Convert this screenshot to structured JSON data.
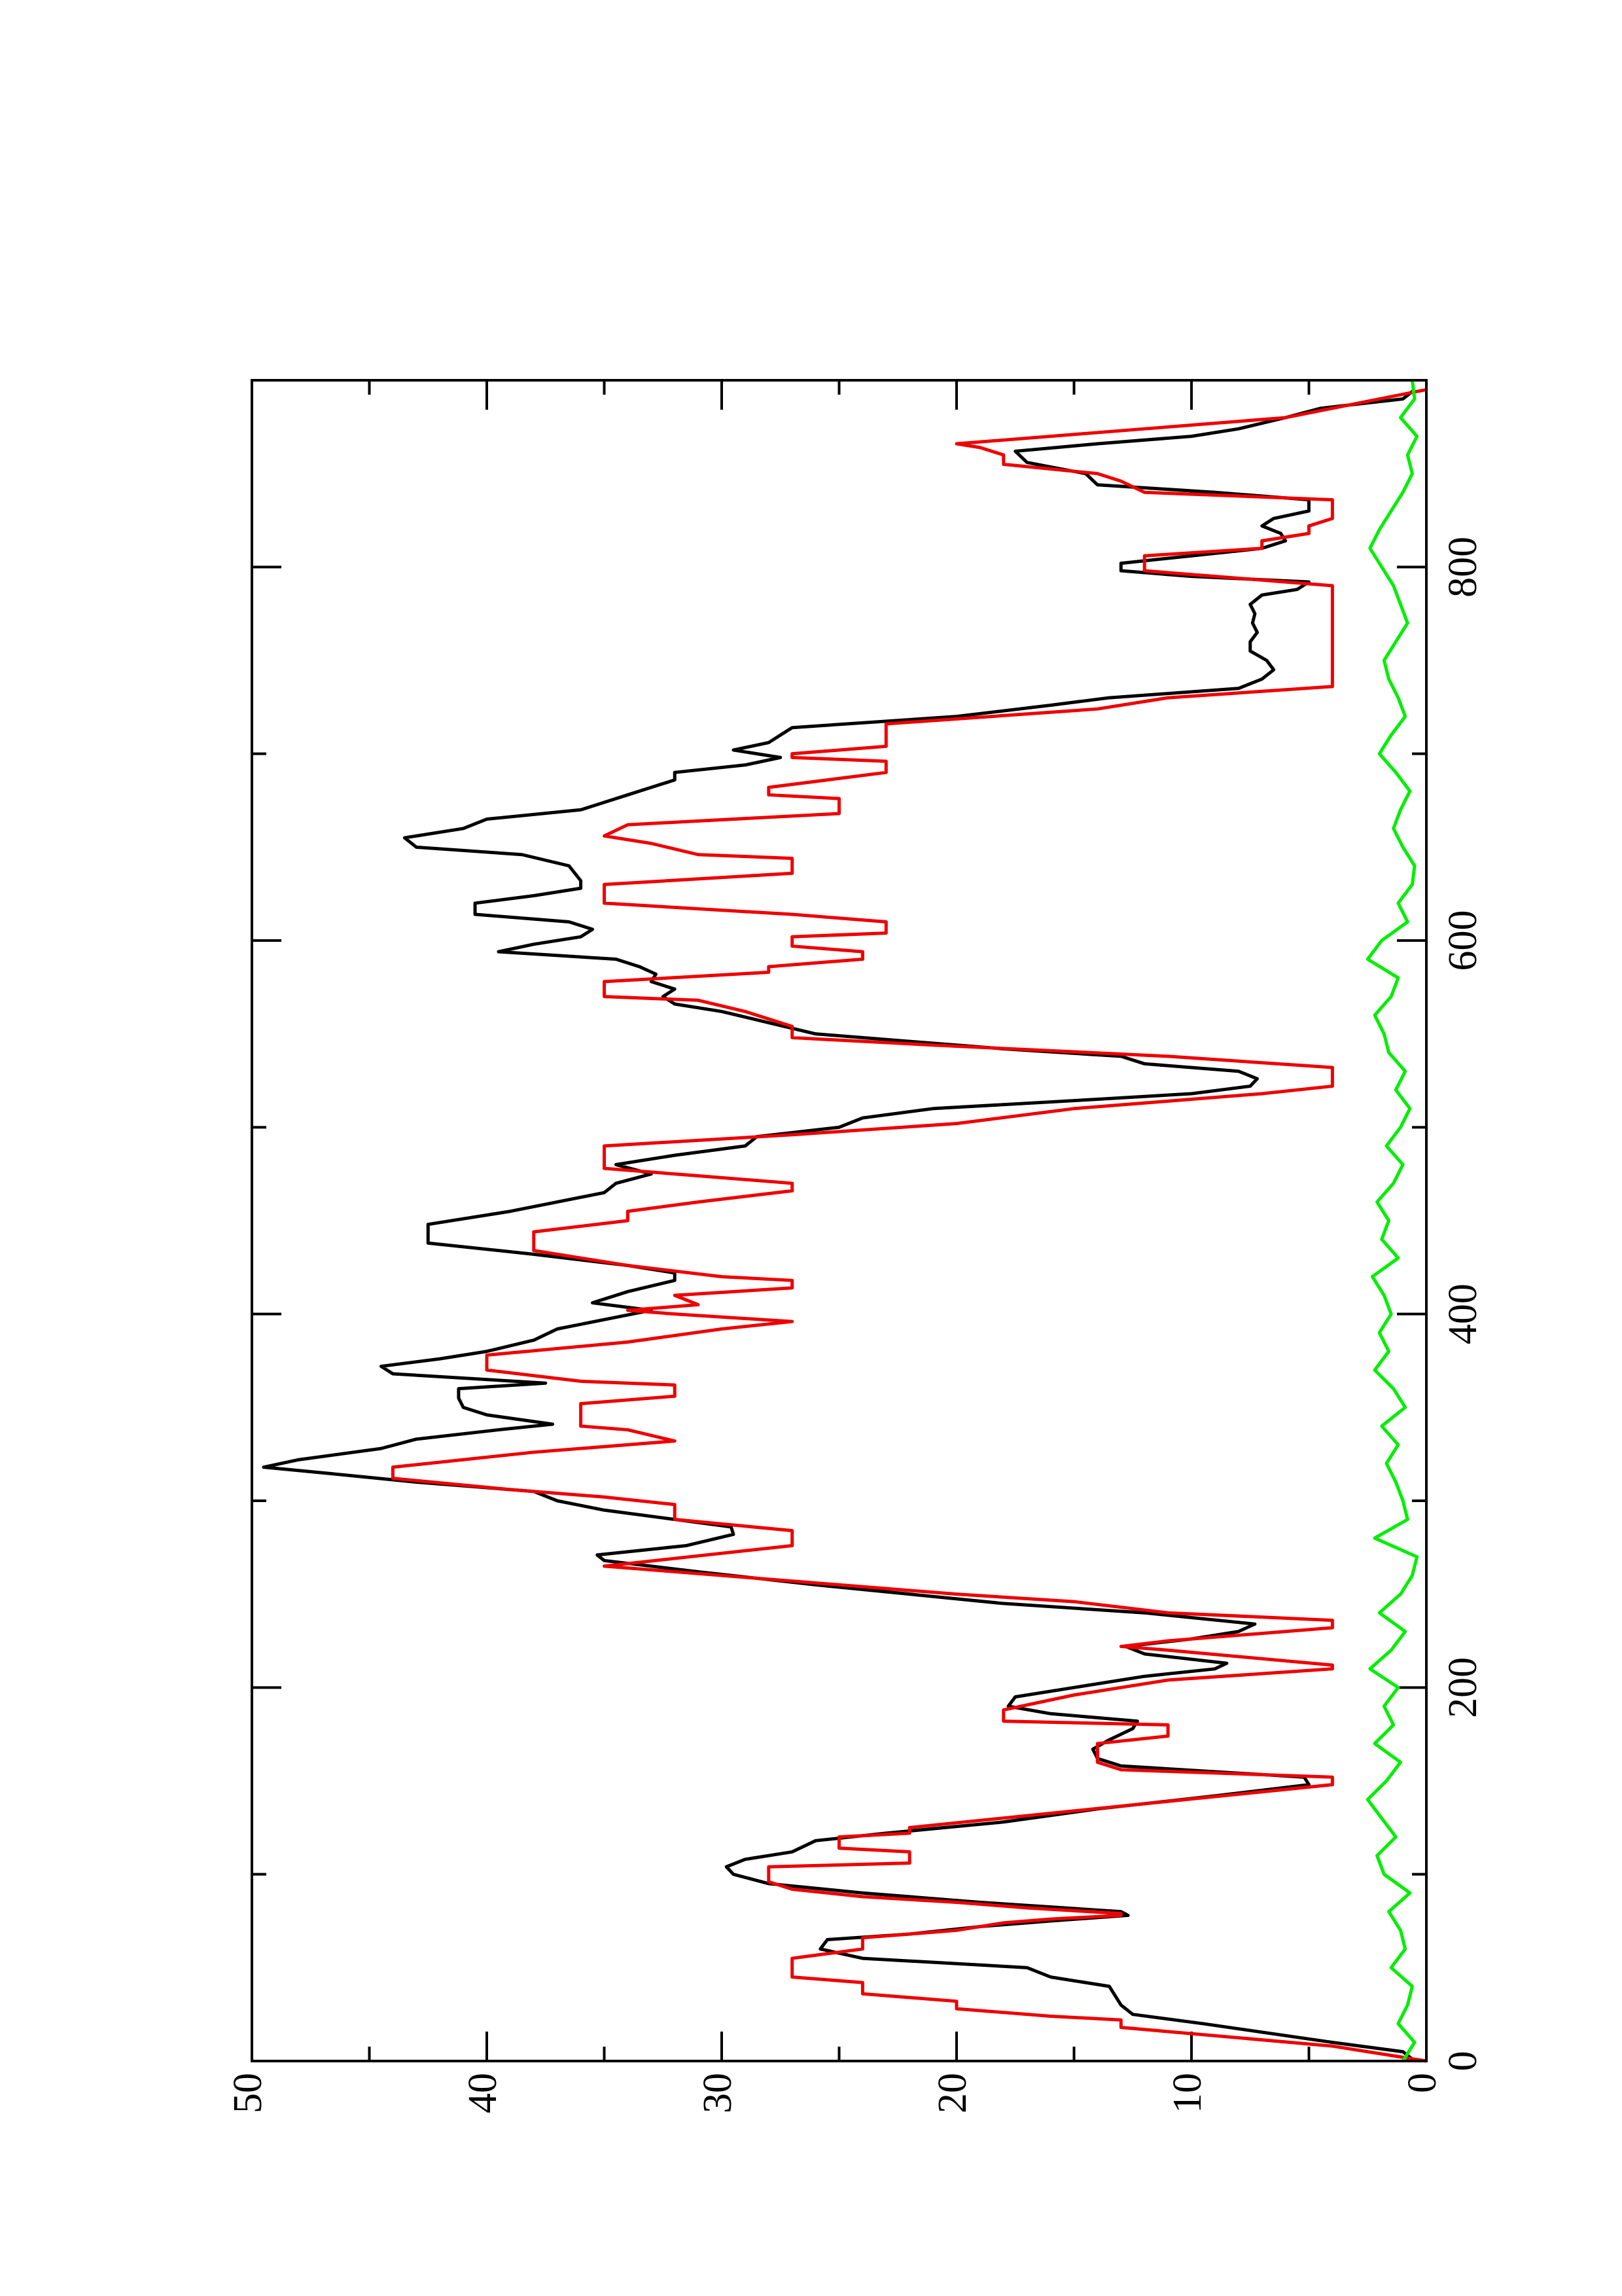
{
  "chart_data": {
    "type": "line",
    "xlim": [
      0,
      900
    ],
    "ylim": [
      0,
      50
    ],
    "xticks": [
      0,
      200,
      400,
      600,
      800
    ],
    "xminorticks": [
      100,
      300,
      500,
      700
    ],
    "yticks": [
      0,
      10,
      20,
      30,
      40,
      50
    ],
    "yminorticks": [
      5,
      15,
      25,
      35,
      45
    ],
    "series": [
      {
        "color": "#000000",
        "x": [
          0,
          5,
          10,
          20,
          25,
          30,
          40,
          45,
          50,
          55,
          60,
          65,
          68,
          72,
          75,
          78,
          80,
          85,
          90,
          95,
          100,
          104,
          108,
          112,
          118,
          122,
          128,
          135,
          142,
          148,
          152,
          158,
          162,
          167,
          172,
          178,
          182,
          186,
          190,
          195,
          200,
          206,
          210,
          213,
          218,
          222,
          226,
          230,
          234,
          240,
          245,
          250,
          255,
          262,
          268,
          271,
          276,
          282,
          286,
          290,
          295,
          300,
          305,
          310,
          315,
          318,
          322,
          328,
          333,
          338,
          341,
          346,
          350,
          355,
          360,
          363,
          368,
          372,
          376,
          380,
          386,
          392,
          397,
          402,
          406,
          412,
          418,
          422,
          426,
          432,
          438,
          448,
          455,
          460,
          465,
          470,
          475,
          480,
          485,
          490,
          495,
          500,
          505,
          510,
          515,
          518,
          522,
          526,
          530,
          534,
          538,
          542,
          546,
          550,
          556,
          562,
          566,
          570,
          574,
          578,
          582,
          586,
          590,
          594,
          598,
          602,
          606,
          610,
          614,
          620,
          624,
          628,
          632,
          640,
          646,
          650,
          655,
          660,
          665,
          670,
          674,
          678,
          682,
          686,
          690,
          694,
          698,
          702,
          706,
          710,
          714,
          720,
          726,
          730,
          735,
          740,
          745,
          750,
          755,
          760,
          765,
          770,
          775,
          780,
          785,
          788,
          792,
          795,
          798,
          802,
          806,
          810,
          814,
          818,
          822,
          826,
          830,
          836,
          840,
          844,
          850,
          856,
          862,
          866,
          870,
          874,
          880,
          885,
          890,
          895
        ],
        "values": [
          0.5,
          1,
          4,
          9.5,
          12.5,
          13,
          13.5,
          16,
          17,
          24,
          25.8,
          25.5,
          22,
          19,
          16,
          12.7,
          13,
          19,
          24,
          28,
          29.5,
          29.8,
          29,
          27,
          26,
          23,
          18,
          14,
          9,
          5,
          5.2,
          13,
          14,
          14.2,
          13.5,
          12.5,
          12.3,
          16,
          17.8,
          17.5,
          15,
          12,
          9,
          8.5,
          12,
          12.8,
          10,
          8,
          7.3,
          12,
          18,
          22,
          26,
          31,
          35,
          35.3,
          31.5,
          29.5,
          29.6,
          32,
          35,
          37,
          38,
          43,
          47,
          49.5,
          48,
          44.5,
          43,
          39.5,
          37.2,
          40,
          41,
          41.2,
          41.2,
          37.5,
          44,
          44.5,
          42,
          40,
          38,
          37,
          35,
          33,
          35.5,
          34,
          32,
          32,
          34,
          38,
          42.5,
          42.5,
          39,
          37,
          35,
          34.5,
          33,
          34.5,
          32,
          29,
          28.5,
          25,
          24,
          21,
          14,
          10,
          7.5,
          7.2,
          8,
          12,
          13,
          18,
          22,
          26,
          28,
          30,
          32,
          32.5,
          32,
          33,
          32.8,
          33.5,
          34.5,
          39.5,
          38,
          36,
          35.5,
          36.5,
          40.5,
          40.5,
          38,
          36,
          36,
          36.5,
          38.5,
          43,
          43.5,
          41,
          40,
          36,
          35,
          34,
          33,
          32,
          32,
          29,
          27.5,
          29.5,
          28,
          27.5,
          27,
          20,
          16,
          13.5,
          8,
          7,
          6.5,
          6.8,
          7.5,
          7.5,
          7.2,
          7.4,
          7.3,
          7.5,
          7,
          5.5,
          5,
          10,
          13,
          13,
          10,
          7,
          6,
          6.2,
          7,
          6.5,
          5,
          5,
          9,
          14,
          14.5,
          17,
          17.5,
          14,
          10,
          8,
          6,
          4.5,
          1,
          0.5
        ]
      },
      {
        "color": "#ee0000",
        "x": [
          0,
          8,
          18,
          22,
          24,
          28,
          32,
          34,
          36,
          42,
          45,
          55,
          60,
          66,
          70,
          74,
          76,
          78,
          79,
          82,
          85,
          88,
          92,
          96,
          104,
          106,
          112,
          114,
          120,
          122,
          125,
          148,
          152,
          156,
          160,
          170,
          174,
          180,
          182,
          188,
          196,
          204,
          210,
          212,
          220,
          222,
          225,
          232,
          236,
          240,
          246,
          250,
          252,
          258,
          262,
          265,
          276,
          282,
          284,
          290,
          298,
          302,
          306,
          312,
          318,
          326,
          332,
          338,
          340,
          352,
          356,
          362,
          364,
          370,
          378,
          385,
          392,
          396,
          400,
          402,
          405,
          410,
          414,
          418,
          420,
          426,
          430,
          434,
          444,
          450,
          455,
          460,
          466,
          470,
          474,
          478,
          490,
          496,
          502,
          510,
          514,
          518,
          522,
          532,
          538,
          544,
          548,
          554,
          562,
          568,
          570,
          578,
          583,
          586,
          590,
          594,
          597,
          602,
          604,
          610,
          614,
          620,
          630,
          636,
          644,
          646,
          652,
          656,
          662,
          664,
          668,
          676,
          678,
          682,
          690,
          696,
          698,
          700,
          704,
          716,
          724,
          730,
          736,
          790,
          798,
          806,
          810,
          814,
          818,
          822,
          826,
          836,
          840,
          846,
          850,
          855,
          860,
          864,
          866,
          870,
          874,
          880,
          885,
          895
        ],
        "values": [
          0,
          4,
          13,
          13,
          16,
          20,
          20,
          22,
          24,
          24,
          27,
          27,
          24,
          24,
          20,
          18,
          16,
          13,
          13,
          17,
          20,
          24,
          27,
          28,
          28,
          22,
          22,
          25,
          25,
          22,
          22,
          4,
          4,
          13,
          14,
          14,
          11,
          11,
          18,
          18,
          15,
          11,
          4,
          4,
          11,
          13,
          11,
          4,
          4,
          11,
          15,
          20,
          22,
          28,
          32,
          35,
          27,
          27,
          27,
          32,
          32,
          35,
          39,
          44,
          44,
          38,
          32,
          34,
          36,
          36,
          32,
          32,
          36,
          40,
          40,
          34,
          30,
          27,
          32,
          34,
          31,
          32,
          27,
          27,
          30,
          34,
          36,
          38,
          38,
          34,
          34,
          31,
          27,
          27,
          31,
          35,
          35,
          27,
          20,
          15,
          11,
          7,
          4,
          4,
          11,
          21,
          27,
          27,
          29,
          31,
          35,
          35,
          28,
          28,
          24,
          24,
          27,
          27,
          23,
          23,
          27,
          35,
          35,
          27,
          27,
          31,
          33,
          35,
          34,
          31,
          25,
          25,
          28,
          28,
          23,
          23,
          27,
          27,
          23,
          23,
          14,
          11,
          4,
          4,
          12,
          12,
          7,
          7,
          5,
          5,
          4,
          4,
          12,
          13,
          14,
          18,
          18,
          19,
          20,
          16,
          12,
          6,
          4,
          0
        ]
      },
      {
        "color": "#00ee00",
        "x": [
          0,
          10,
          20,
          30,
          40,
          50,
          60,
          70,
          80,
          90,
          100,
          110,
          120,
          130,
          140,
          150,
          160,
          170,
          180,
          190,
          200,
          210,
          220,
          230,
          240,
          250,
          260,
          270,
          280,
          290,
          300,
          310,
          320,
          330,
          340,
          350,
          360,
          370,
          380,
          390,
          400,
          410,
          420,
          430,
          440,
          450,
          460,
          470,
          480,
          490,
          500,
          510,
          520,
          530,
          540,
          550,
          560,
          570,
          580,
          590,
          600,
          610,
          620,
          630,
          640,
          650,
          660,
          670,
          680,
          690,
          700,
          710,
          720,
          730,
          740,
          750,
          760,
          770,
          780,
          790,
          800,
          810,
          820,
          830,
          840,
          850,
          860,
          870,
          880,
          890,
          900
        ],
        "values": [
          1,
          0.5,
          1.2,
          0.8,
          0.6,
          1.5,
          0.9,
          1.1,
          1.6,
          0.7,
          1.8,
          2.1,
          1.3,
          1.9,
          2.5,
          1.7,
          1.1,
          2.2,
          1.4,
          1.8,
          1.2,
          2.4,
          1.5,
          0.9,
          2.0,
          1.1,
          0.6,
          0.4,
          2.2,
          0.8,
          1.0,
          1.3,
          1.7,
          1.2,
          1.9,
          0.9,
          1.4,
          2.2,
          1.6,
          2.0,
          1.5,
          1.8,
          2.3,
          1.2,
          1.9,
          1.6,
          2.1,
          1.4,
          1.0,
          1.7,
          1.1,
          0.7,
          1.3,
          0.9,
          1.6,
          1.8,
          2.2,
          1.5,
          1.2,
          2.5,
          1.9,
          0.8,
          1.2,
          0.6,
          0.5,
          1.0,
          1.4,
          1.1,
          0.7,
          1.3,
          2.0,
          1.5,
          0.9,
          1.2,
          1.6,
          1.8,
          1.3,
          0.8,
          1.1,
          1.4,
          1.9,
          2.4,
          2.0,
          1.5,
          1.0,
          0.6,
          0.8,
          0.4,
          1.1,
          0.5,
          0.6
        ]
      }
    ]
  }
}
